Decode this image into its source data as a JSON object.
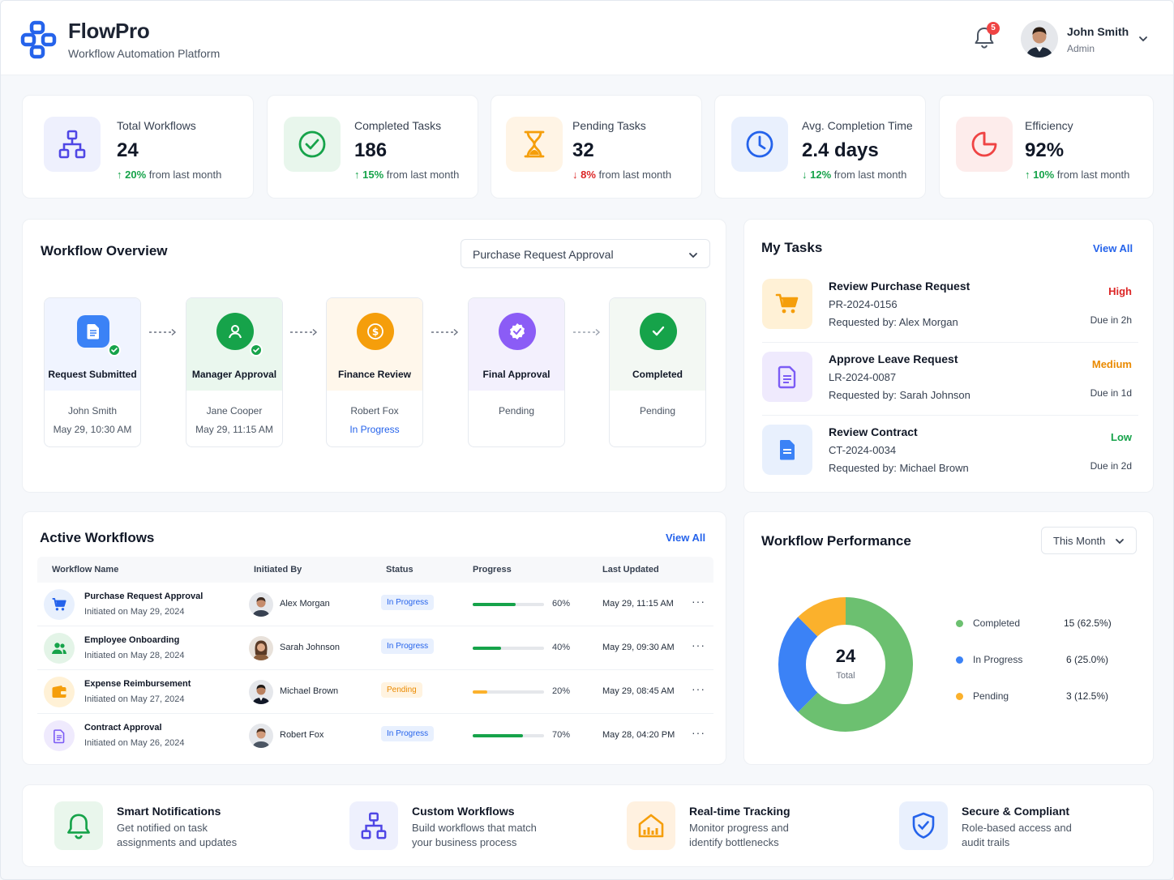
{
  "header": {
    "brand_name": "FlowPro",
    "brand_sub": "Workflow Automation Platform",
    "notification_count": "5",
    "user_name": "John Smith",
    "user_role": "Admin"
  },
  "stats": [
    {
      "label": "Total Workflows",
      "value": "24",
      "change": "20%",
      "change_text": " from last month",
      "direction": "up",
      "icon": "workflow-icon",
      "color": "#4f46e5"
    },
    {
      "label": "Completed Tasks",
      "value": "186",
      "change": "15%",
      "change_text": " from last month",
      "direction": "up",
      "icon": "check-circle-icon",
      "color": "#16a34a"
    },
    {
      "label": "Pending Tasks",
      "value": "32",
      "change": "8%",
      "change_text": " from last month",
      "direction": "down",
      "icon": "hourglass-icon",
      "color": "#f59e0b"
    },
    {
      "label": "Avg. Completion Time",
      "value": "2.4 days",
      "change": "12%",
      "change_text": " from last month",
      "direction": "down-green",
      "icon": "clock-icon",
      "color": "#2563eb"
    },
    {
      "label": "Efficiency",
      "value": "92%",
      "change": "10%",
      "change_text": " from last month",
      "direction": "up",
      "icon": "pie-icon",
      "color": "#ef4444"
    }
  ],
  "overview": {
    "title": "Workflow Overview",
    "selected_workflow": "Purchase Request Approval",
    "steps": [
      {
        "name": "Request Submitted",
        "person": "John Smith",
        "date": "May 29, 10:30 AM"
      },
      {
        "name": "Manager Approval",
        "person": "Jane Cooper",
        "date": "May 29, 11:15 AM"
      },
      {
        "name": "Finance Review",
        "person": "Robert Fox",
        "date": "In Progress"
      },
      {
        "name": "Final Approval",
        "person": "Pending",
        "date": ""
      },
      {
        "name": "Completed",
        "person": "Pending",
        "date": ""
      }
    ]
  },
  "tasks": {
    "title": "My Tasks",
    "view_all": "View All",
    "items": [
      {
        "title": "Review Purchase Request",
        "id": "PR-2024-0156",
        "requested": "Requested by: Alex Morgan",
        "priority": "High",
        "due": "Due in 2h",
        "priority_color": "#dc2626"
      },
      {
        "title": "Approve Leave Request",
        "id": "LR-2024-0087",
        "requested": "Requested by: Sarah Johnson",
        "priority": "Medium",
        "due": "Due in 1d",
        "priority_color": "#ea8a00"
      },
      {
        "title": "Review Contract",
        "id": "CT-2024-0034",
        "requested": "Requested by: Michael Brown",
        "priority": "Low",
        "due": "Due in 2d",
        "priority_color": "#16a34a"
      }
    ]
  },
  "active": {
    "title": "Active Workflows",
    "view_all": "View All",
    "columns": [
      "Workflow Name",
      "Initiated By",
      "Status",
      "Progress",
      "Last Updated"
    ],
    "rows": [
      {
        "name": "Purchase Request Approval",
        "sub": "Initiated on May 29, 2024",
        "person": "Alex Morgan",
        "status": "In Progress",
        "progress": 60,
        "progress_label": "60%",
        "updated": "May 29, 11:15 AM",
        "more": "···"
      },
      {
        "name": "Employee Onboarding",
        "sub": "Initiated on May 28, 2024",
        "person": "Sarah Johnson",
        "status": "In Progress",
        "progress": 40,
        "progress_label": "40%",
        "updated": "May 29, 09:30 AM",
        "more": "···"
      },
      {
        "name": "Expense Reimbursement",
        "sub": "Initiated on May 27, 2024",
        "person": "Michael Brown",
        "status": "Pending",
        "progress": 20,
        "progress_label": "20%",
        "updated": "May 29, 08:45 AM",
        "more": "···"
      },
      {
        "name": "Contract Approval",
        "sub": "Initiated on May 26, 2024",
        "person": "Robert Fox",
        "status": "In Progress",
        "progress": 70,
        "progress_label": "70%",
        "updated": "May 28, 04:20 PM",
        "more": "···"
      }
    ]
  },
  "performance": {
    "title": "Workflow Performance",
    "period": "This Month",
    "total": "24",
    "total_label": "Total",
    "legend": [
      {
        "label": "Completed",
        "value": "15 (62.5%)",
        "color": "#6cc070"
      },
      {
        "label": "In Progress",
        "value": "6 (25.0%)",
        "color": "#3b82f6"
      },
      {
        "label": "Pending",
        "value": "3 (12.5%)",
        "color": "#fbb12c"
      }
    ]
  },
  "chart_data": {
    "type": "pie",
    "categories": [
      "Completed",
      "In Progress",
      "Pending"
    ],
    "values": [
      15,
      6,
      3
    ],
    "title": "Workflow Performance"
  },
  "features": [
    {
      "title": "Smart Notifications",
      "desc": "Get notified on task assignments and updates",
      "icon": "bell-icon"
    },
    {
      "title": "Custom Workflows",
      "desc": "Build workflows that match your business process",
      "icon": "workflow-icon"
    },
    {
      "title": "Real-time Tracking",
      "desc": "Monitor progress and identify bottlenecks",
      "icon": "chart-house-icon"
    },
    {
      "title": "Secure & Compliant",
      "desc": "Role-based access and audit trails",
      "icon": "shield-icon"
    }
  ]
}
